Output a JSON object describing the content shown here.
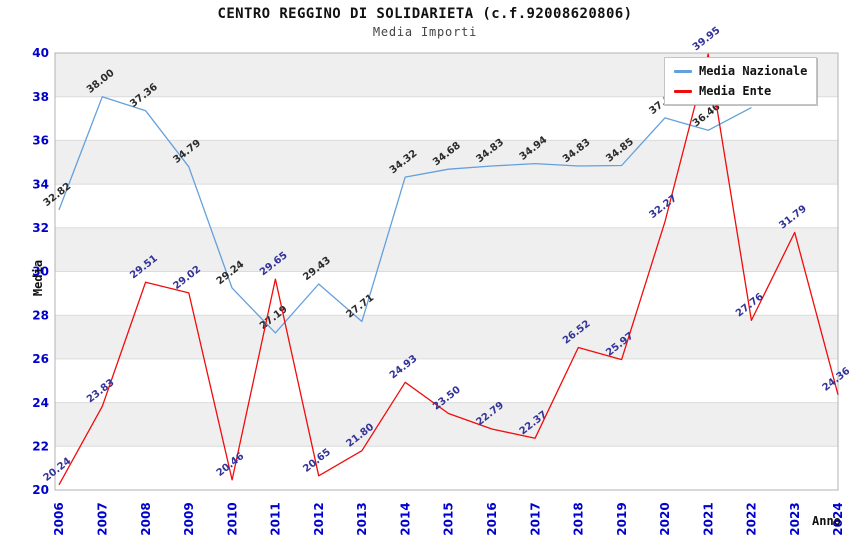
{
  "chart_data": {
    "type": "line",
    "title": "CENTRO REGGINO DI SOLIDARIETA (c.f.92008620806)",
    "subtitle": "Media Importi",
    "xlabel": "Anno",
    "ylabel": "Media",
    "ylim": [
      20,
      40
    ],
    "ytick_step": 2,
    "grid": "horizontal-alternating-bands",
    "legend_position": "top-right",
    "x_ticks": [
      2006,
      2007,
      2008,
      2009,
      2010,
      2011,
      2012,
      2013,
      2014,
      2015,
      2016,
      2017,
      2018,
      2019,
      2020,
      2021,
      2022,
      2023,
      2024
    ],
    "y_ticks": [
      20,
      22,
      24,
      26,
      28,
      30,
      32,
      34,
      36,
      38,
      40
    ],
    "series": [
      {
        "name": "Media Nazionale",
        "color": "#64a0dc",
        "label_color": "#2b2b2b",
        "years": [
          2006,
          2007,
          2008,
          2009,
          2010,
          2011,
          2012,
          2013,
          2014,
          2015,
          2016,
          2017,
          2018,
          2019,
          2020,
          2021,
          2022
        ],
        "values": [
          32.82,
          38.0,
          37.36,
          34.79,
          29.24,
          27.19,
          29.43,
          27.71,
          34.32,
          34.68,
          34.83,
          34.94,
          34.83,
          34.85,
          37.03,
          36.46,
          37.5
        ]
      },
      {
        "name": "Media Ente",
        "color": "#f00c0c",
        "label_color": "#333399",
        "years": [
          2006,
          2007,
          2008,
          2009,
          2010,
          2011,
          2012,
          2013,
          2014,
          2015,
          2016,
          2017,
          2018,
          2019,
          2020,
          2021,
          2022,
          2023,
          2024
        ],
        "values": [
          20.24,
          23.83,
          29.51,
          29.02,
          20.46,
          29.65,
          20.65,
          21.8,
          24.93,
          23.5,
          22.79,
          22.37,
          26.52,
          25.97,
          32.27,
          39.95,
          27.76,
          31.79,
          24.36
        ]
      }
    ],
    "colors": {
      "tick_label": "#0000cc",
      "band_fill": "#efefef",
      "gridline": "#dcdcdc",
      "plot_border": "#b3b3b3",
      "title_text": "#111111",
      "subtitle_text": "#444444"
    }
  }
}
